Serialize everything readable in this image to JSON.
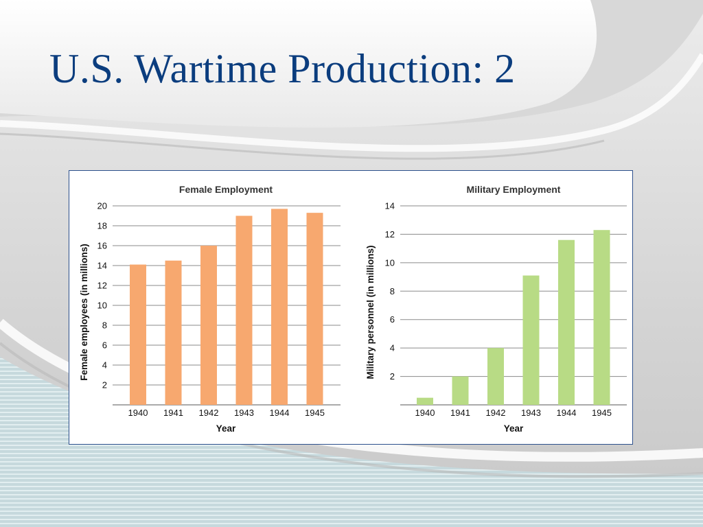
{
  "slide": {
    "title": "U.S. Wartime Production: 2",
    "colors": {
      "title": "#0b3d7e",
      "panel_border": "#2b4f8c",
      "female_bars": "#f7a86f",
      "military_bars": "#b8db85",
      "gridline": "#8a8a8a"
    }
  },
  "chart_data": [
    {
      "type": "bar",
      "title": "Female Employment",
      "xlabel": "Year",
      "ylabel": "Female employees (in millions)",
      "categories": [
        "1940",
        "1941",
        "1942",
        "1943",
        "1944",
        "1945"
      ],
      "values": [
        14.1,
        14.5,
        16.0,
        19.0,
        19.7,
        19.3
      ],
      "ylim": [
        0,
        20
      ],
      "yticks": [
        2,
        4,
        6,
        8,
        10,
        12,
        14,
        16,
        18,
        20
      ],
      "grid": true,
      "color": "#f7a86f"
    },
    {
      "type": "bar",
      "title": "Military Employment",
      "xlabel": "Year",
      "ylabel": "Military personnel (in millions)",
      "categories": [
        "1940",
        "1941",
        "1942",
        "1943",
        "1944",
        "1945"
      ],
      "values": [
        0.5,
        2.0,
        4.0,
        9.1,
        11.6,
        12.3
      ],
      "ylim": [
        0,
        14
      ],
      "yticks": [
        2,
        4,
        6,
        8,
        10,
        12,
        14
      ],
      "grid": true,
      "color": "#b8db85"
    }
  ]
}
